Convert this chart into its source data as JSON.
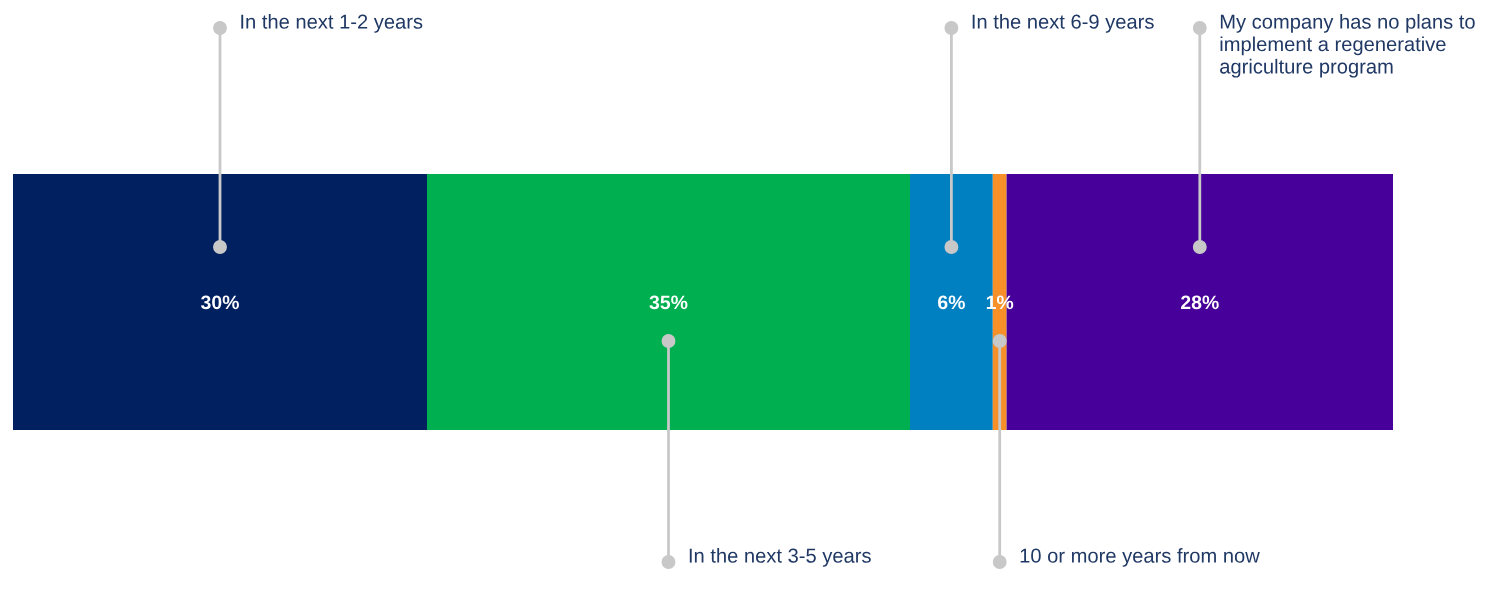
{
  "chart_data": {
    "type": "bar",
    "orientation": "horizontal",
    "stacked": true,
    "categories": [
      null
    ],
    "xlim": [
      0,
      100
    ],
    "legend": false,
    "series": [
      {
        "name": "In the next 1-2 years",
        "color": "#002060",
        "values": [
          30
        ],
        "value_labels": [
          "30%"
        ]
      },
      {
        "name": "In the next 3-5 years",
        "color": "#00b050",
        "values": [
          35
        ],
        "value_labels": [
          "35%"
        ]
      },
      {
        "name": "In the next 6-9 years",
        "color": "#0080c0",
        "values": [
          6
        ],
        "value_labels": [
          "6%"
        ]
      },
      {
        "name": "10 or more years from now",
        "color": "#f79028",
        "values": [
          1
        ],
        "value_labels": [
          "1%"
        ]
      },
      {
        "name": "My company has no plans to implement a regenerative agriculture program",
        "color": "#470099",
        "values": [
          28
        ],
        "value_labels": [
          "28%"
        ]
      }
    ]
  }
}
